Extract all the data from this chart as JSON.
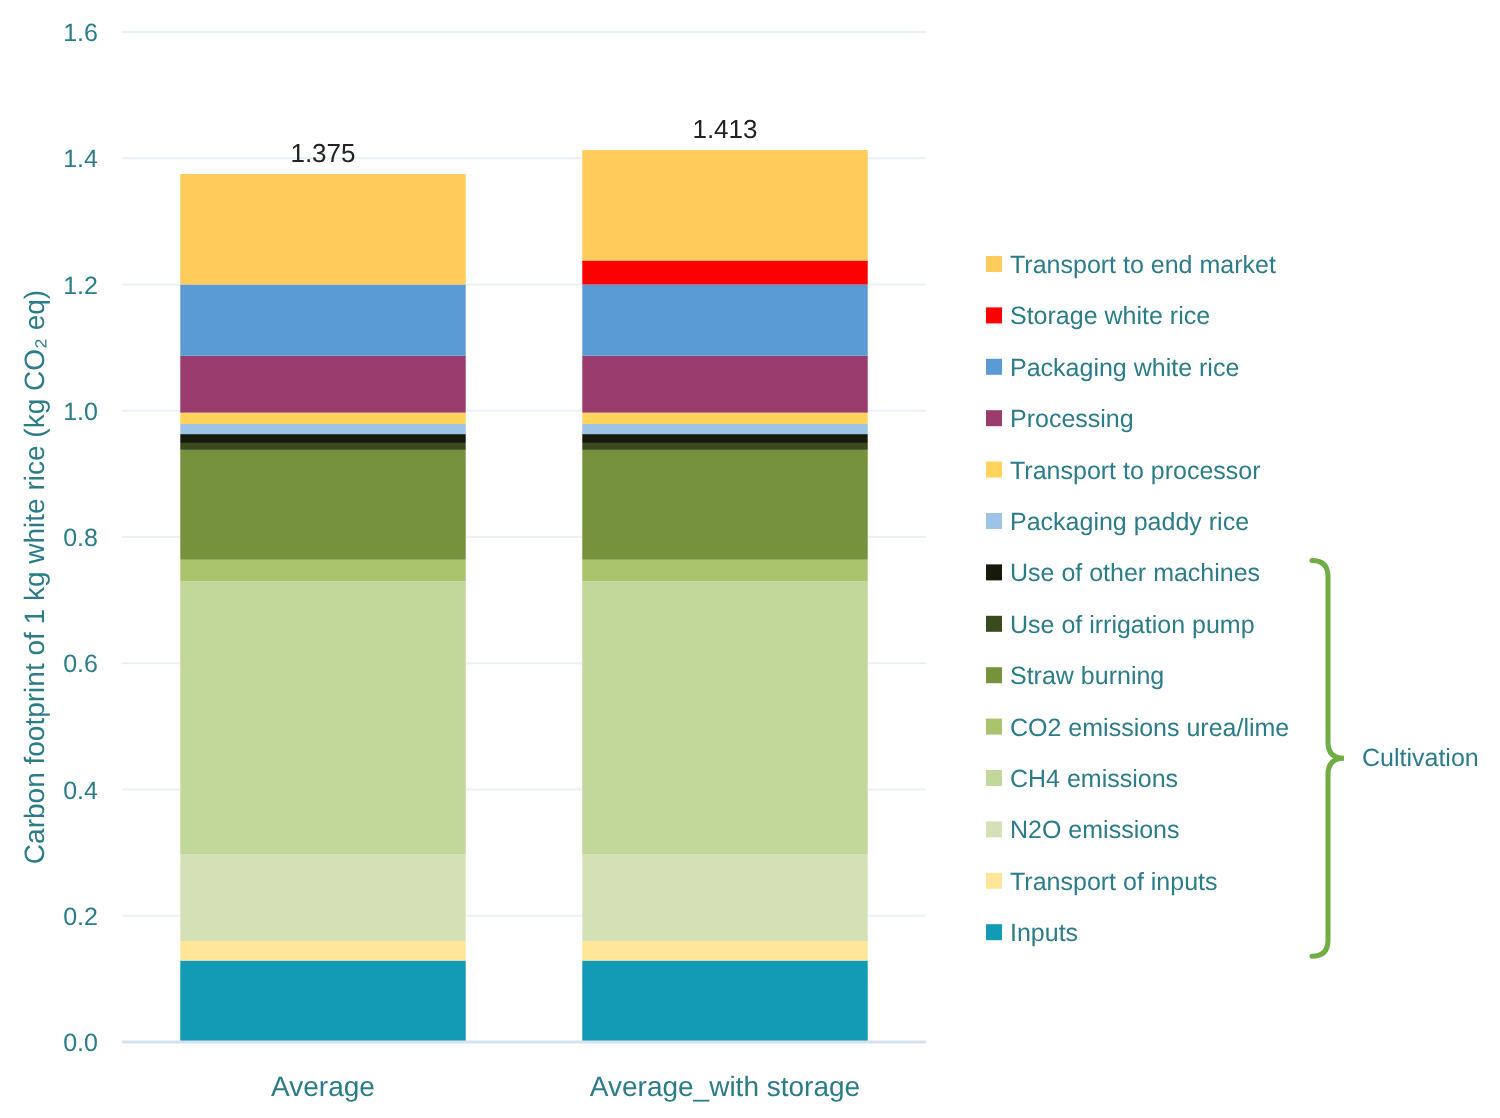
{
  "chart_data": {
    "type": "bar",
    "stacked": true,
    "ylabel": "Carbon footprint of 1 kg white rice (kg CO₂ eq)",
    "categories": [
      "Average",
      "Average_with storage"
    ],
    "series": [
      {
        "name": "Inputs",
        "color": "#139ab5",
        "values": [
          0.129,
          0.129
        ]
      },
      {
        "name": "Transport of inputs",
        "color": "#ffe699",
        "values": [
          0.031,
          0.031
        ]
      },
      {
        "name": "N2O emissions",
        "color": "#d4e1b6",
        "values": [
          0.137,
          0.137
        ]
      },
      {
        "name": "CH4 emissions",
        "color": "#c2d79a",
        "values": [
          0.433,
          0.433
        ]
      },
      {
        "name": "CO2 emissions urea/lime",
        "color": "#a9c46c",
        "values": [
          0.034,
          0.034
        ]
      },
      {
        "name": "Straw burning",
        "color": "#76923c",
        "values": [
          0.174,
          0.174
        ]
      },
      {
        "name": "Use of irrigation pump",
        "color": "#3b4a1e",
        "values": [
          0.011,
          0.011
        ]
      },
      {
        "name": "Use of other machines",
        "color": "#151a0d",
        "values": [
          0.014,
          0.014
        ]
      },
      {
        "name": "Packaging paddy rice",
        "color": "#9dc3e6",
        "values": [
          0.016,
          0.016
        ]
      },
      {
        "name": "Transport to processor",
        "color": "#ffd35c",
        "values": [
          0.018,
          0.018
        ]
      },
      {
        "name": "Processing",
        "color": "#993d6e",
        "values": [
          0.09,
          0.09
        ]
      },
      {
        "name": "Packaging white rice",
        "color": "#5b9bd5",
        "values": [
          0.113,
          0.113
        ]
      },
      {
        "name": "Storage white rice",
        "color": "#ff0000",
        "values": [
          null,
          0.038
        ]
      },
      {
        "name": "Transport to end market",
        "color": "#ffcb5a",
        "values": [
          0.175,
          0.175
        ]
      }
    ],
    "totals": [
      "1.375",
      "1.413"
    ],
    "ylim": [
      0,
      1.6
    ],
    "yticks": [
      {
        "value": 0,
        "label": "0.0"
      },
      0.2,
      0.4,
      0.6,
      0.8,
      {
        "value": 1,
        "label": "1.0"
      },
      1.2,
      1.4,
      1.6
    ],
    "grid": "y",
    "legend": "right",
    "annotations": [
      "Cultivation"
    ]
  }
}
